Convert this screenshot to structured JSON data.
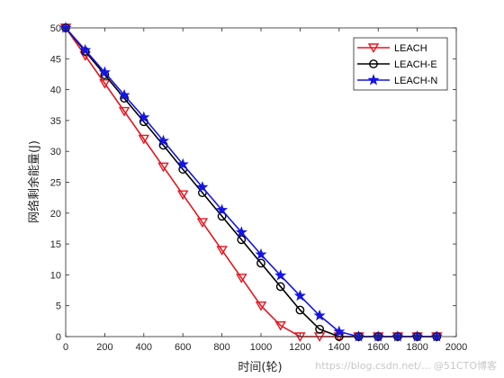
{
  "chart_data": {
    "type": "line",
    "title": "",
    "xlabel": "时间(轮)",
    "ylabel": "网络剩余能量(J)",
    "xlim": [
      0,
      2000
    ],
    "ylim": [
      0,
      50
    ],
    "xticks": [
      0,
      200,
      400,
      600,
      800,
      1000,
      1200,
      1400,
      1600,
      1800,
      2000
    ],
    "yticks": [
      0,
      5,
      10,
      15,
      20,
      25,
      30,
      35,
      40,
      45,
      50
    ],
    "grid": false,
    "legend_position": "top-right",
    "x": [
      0,
      100,
      200,
      300,
      400,
      500,
      600,
      700,
      800,
      900,
      1000,
      1100,
      1200,
      1300,
      1400,
      1500,
      1600,
      1700,
      1800,
      1900
    ],
    "series": [
      {
        "name": "LEACH",
        "color": "#e8141e",
        "marker": "triangle-down",
        "values": [
          50,
          45.5,
          41,
          36.5,
          32,
          27.5,
          23,
          18.5,
          14,
          9.5,
          5,
          1.8,
          0,
          0,
          0,
          0,
          0,
          0,
          0,
          0
        ]
      },
      {
        "name": "LEACH-E",
        "color": "#000000",
        "marker": "circle",
        "values": [
          50,
          46.2,
          42.4,
          38.6,
          34.8,
          31,
          27.1,
          23.3,
          19.5,
          15.7,
          11.9,
          8.1,
          4.3,
          1.2,
          0,
          0,
          0,
          0,
          0,
          0
        ]
      },
      {
        "name": "LEACH-N",
        "color": "#1414e6",
        "marker": "star",
        "values": [
          50,
          46.4,
          42.8,
          39.1,
          35.5,
          31.7,
          27.9,
          24.2,
          20.5,
          16.9,
          13.3,
          9.9,
          6.6,
          3.4,
          0.8,
          0,
          0,
          0,
          0,
          0
        ]
      }
    ]
  },
  "watermark": "https://blog.csdn.net/... @51CTO博客"
}
